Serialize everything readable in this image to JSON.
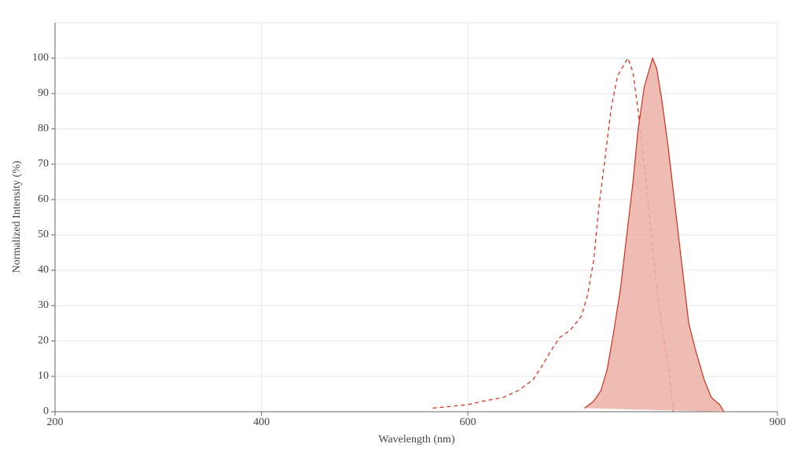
{
  "chart_data": {
    "type": "line",
    "x_label": "Wavelength (nm)",
    "y_label": "Normalized Intensity (%)",
    "xlim": [
      200,
      900
    ],
    "xticks": [
      200,
      400,
      600,
      900
    ],
    "ylim": [
      0,
      110
    ],
    "yticks": [
      0,
      10,
      20,
      30,
      40,
      50,
      60,
      70,
      80,
      90,
      100
    ],
    "grid": true,
    "series": [
      {
        "color": "#d42a10",
        "dashed": true,
        "fill": null,
        "x": [
          566,
          600,
          615,
          634,
          649,
          663,
          672,
          680,
          689,
          699,
          710,
          716,
          722,
          727,
          733,
          739,
          745,
          755,
          760,
          765,
          771,
          777,
          783,
          789,
          795,
          799
        ],
        "values": [
          1,
          2,
          3,
          4,
          6,
          9,
          13,
          17,
          21,
          23,
          27,
          33,
          43,
          58,
          72,
          86,
          95,
          100,
          96,
          85,
          70,
          52,
          35,
          22,
          12,
          0
        ]
      },
      {
        "color": "#c8321e",
        "dashed": false,
        "fill": "#ebb0a5",
        "x": [
          713,
          722,
          729,
          735,
          741,
          748,
          754,
          760,
          765,
          771,
          779,
          783,
          788,
          794,
          800,
          806,
          814,
          821,
          829,
          836,
          844,
          848
        ],
        "values": [
          1,
          3,
          6,
          12,
          22,
          35,
          50,
          65,
          80,
          92,
          100,
          97,
          88,
          75,
          60,
          45,
          25,
          17,
          9,
          4,
          2,
          0
        ]
      }
    ]
  }
}
